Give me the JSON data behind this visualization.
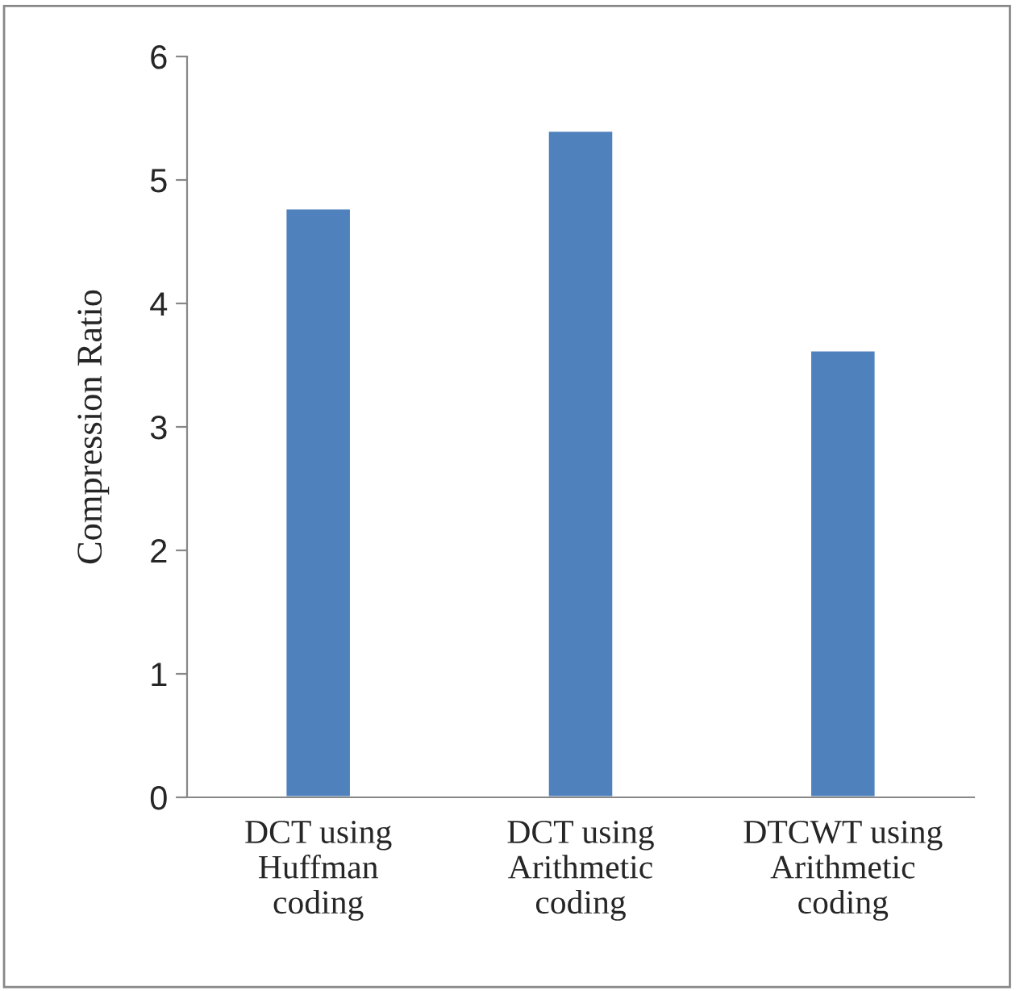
{
  "chart_data": {
    "type": "bar",
    "ylabel": "Compression Ratio",
    "categories": [
      "DCT using\nHuffman\ncoding",
      "DCT using\nArithmetic\ncoding",
      "DTCWT using\nArithmetic\ncoding"
    ],
    "values": [
      4.77,
      5.4,
      3.62
    ],
    "color": "#4f81bd",
    "ylim": [
      0,
      6
    ],
    "yticks": [
      0,
      1,
      2,
      3,
      4,
      5,
      6
    ],
    "grid": false,
    "legend": false
  }
}
